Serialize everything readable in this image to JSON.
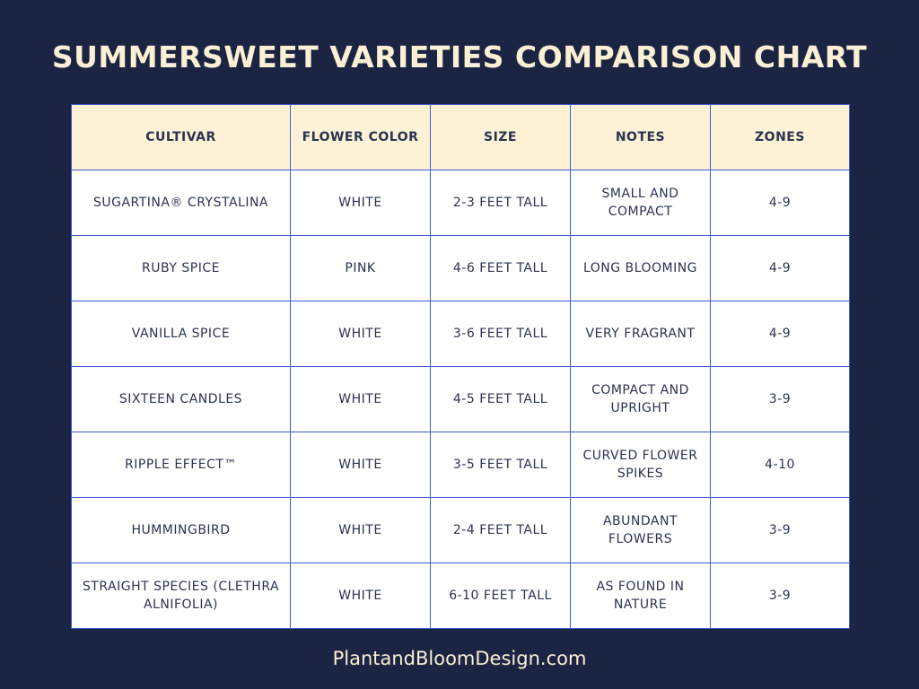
{
  "title": "SUMMERSWEET VARIETIES COMPARISON CHART",
  "table": {
    "header": [
      "CULTIVAR",
      "FLOWER COLOR",
      "SIZE",
      "NOTES",
      "ZONES"
    ],
    "rows": [
      [
        "SUGARTINA® CRYSTALINA",
        "WHITE",
        "2-3 FEET TALL",
        "SMALL AND COMPACT",
        "4-9"
      ],
      [
        "RUBY SPICE",
        "PINK",
        "4-6 FEET TALL",
        "LONG BLOOMING",
        "4-9"
      ],
      [
        "VANILLA SPICE",
        "WHITE",
        "3-6 FEET TALL",
        "VERY FRAGRANT",
        "4-9"
      ],
      [
        "SIXTEEN CANDLES",
        "WHITE",
        "4-5 FEET TALL",
        "COMPACT AND UPRIGHT",
        "3-9"
      ],
      [
        "RIPPLE EFFECT™",
        "WHITE",
        "3-5 FEET TALL",
        "CURVED FLOWER SPIKES",
        "4-10"
      ],
      [
        "HUMMINGBIRD",
        "WHITE",
        "2-4 FEET TALL",
        "ABUNDANT FLOWERS",
        "3-9"
      ],
      [
        "STRAIGHT SPECIES (CLETHRA ALNIFOLIA)",
        "WHITE",
        "6-10 FEET TALL",
        "AS FOUND IN NATURE",
        "3-9"
      ]
    ]
  },
  "footer": "PlantandBloomDesign.com"
}
